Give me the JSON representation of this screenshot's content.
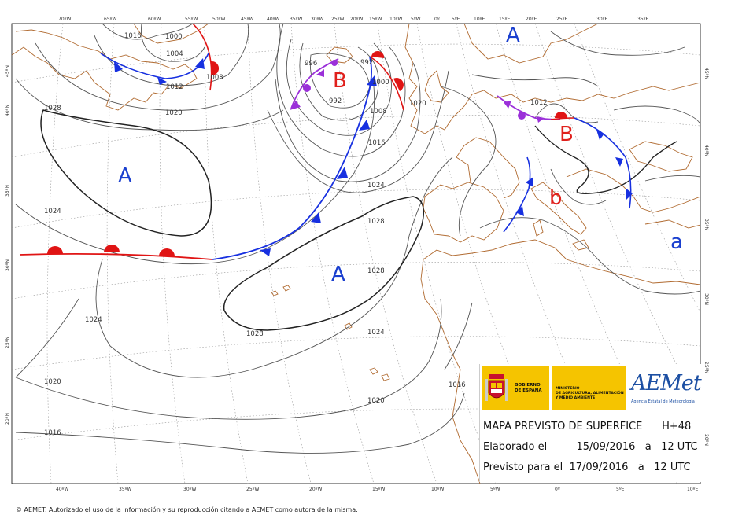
{
  "ticks": {
    "top": [
      "70ºW",
      "65ºW",
      "60ºW",
      "55ºW",
      "50ºW",
      "45ºW",
      "40ºW",
      "35ºW",
      "30ºW",
      "25ºW",
      "20ºW",
      "15ºW",
      "10ºW",
      "5ºW",
      "0º",
      "5ºE",
      "10ºE",
      "15ºE",
      "20ºE",
      "25ºE",
      "30ºE",
      "35ºE"
    ],
    "bottom": [
      "40ºW",
      "35ºW",
      "30ºW",
      "25ºW",
      "20ºW",
      "15ºW",
      "10ºW",
      "5ºW",
      "0º",
      "5ºE",
      "10ºE"
    ],
    "left": [
      "45ºN",
      "40ºN",
      "35ºN",
      "30ºN",
      "25ºN",
      "20ºN"
    ],
    "right": [
      "45ºN",
      "40ºN",
      "35ºN",
      "30ºN",
      "25ºN",
      "20ºN"
    ]
  },
  "isobar_labels": [
    "1016",
    "1000",
    "1004",
    "1012",
    "1008",
    "1020",
    "1028",
    "996",
    "992",
    "992",
    "1000",
    "1008",
    "1016",
    "1020",
    "1012",
    "1024",
    "1024",
    "1028",
    "1028",
    "1028",
    "1024",
    "1024",
    "1016",
    "1020",
    "1020",
    "1016"
  ],
  "pressure_centers": [
    {
      "label": "A",
      "kind": "high"
    },
    {
      "label": "A",
      "kind": "high"
    },
    {
      "label": "A",
      "kind": "high"
    },
    {
      "label": "B",
      "kind": "low"
    },
    {
      "label": "B",
      "kind": "low"
    },
    {
      "label": "b",
      "kind": "low"
    },
    {
      "label": "a",
      "kind": "high"
    }
  ],
  "colors": {
    "high": "#1a3fcf",
    "low": "#e0201c",
    "cold_front": "#1730e0",
    "warm_front": "#e01414",
    "occluded_front": "#9b30d9",
    "coast": "#b06a30",
    "isobar": "#444444",
    "grid": "#999999"
  },
  "legend": {
    "gob_label": "GOBIERNO\nDE ESPAÑA",
    "min_label": "MINISTERIO\nDE AGRICULTURA, ALIMENTACIÓN\nY MEDIO AMBIENTE",
    "aemet_logo": "AEMet",
    "aemet_sub": "Agencia Estatal de Meteorología",
    "line1": "MAPA PREVISTO DE SUPERFICE      H+48",
    "line2": "Elaborado el         15/09/2016   a   12 UTC",
    "line3": "Previsto para el  17/09/2016   a   12 UTC"
  },
  "footer": "© AEMET. Autorizado el uso de la información y su reproducción citando a AEMET como autora de la misma."
}
